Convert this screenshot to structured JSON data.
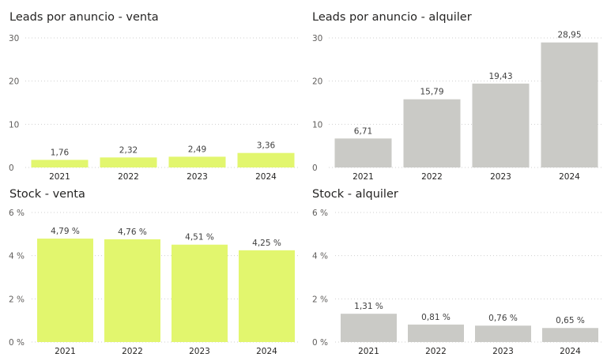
{
  "colors": {
    "venta": "#e2f66e",
    "alquiler": "#cacac6",
    "grid": "#cfcfcf",
    "axis_text": "#605e5c",
    "label_text": "#404040"
  },
  "chart_data": [
    {
      "id": "leads-venta",
      "type": "bar",
      "title": "Leads por anuncio - venta",
      "categories": [
        "2021",
        "2022",
        "2023",
        "2024"
      ],
      "values": [
        1.76,
        2.32,
        2.49,
        3.36
      ],
      "labels": [
        "1,76",
        "2,32",
        "2,49",
        "3,36"
      ],
      "yticks": [
        "0",
        "10",
        "20",
        "30"
      ],
      "ylim": [
        0,
        30
      ],
      "color": "#e2f66e",
      "grid": true
    },
    {
      "id": "leads-alquiler",
      "type": "bar",
      "title": "Leads por anuncio - alquiler",
      "categories": [
        "2021",
        "2022",
        "2023",
        "2024"
      ],
      "values": [
        6.71,
        15.79,
        19.43,
        28.95
      ],
      "labels": [
        "6,71",
        "15,79",
        "19,43",
        "28,95"
      ],
      "yticks": [
        "0",
        "10",
        "20",
        "30"
      ],
      "ylim": [
        0,
        30
      ],
      "color": "#cacac6",
      "grid": true
    },
    {
      "id": "stock-venta",
      "type": "bar",
      "title": "Stock - venta",
      "categories": [
        "2021",
        "2022",
        "2023",
        "2024"
      ],
      "values": [
        4.79,
        4.76,
        4.51,
        4.25
      ],
      "labels": [
        "4,79 %",
        "4,76 %",
        "4,51 %",
        "4,25 %"
      ],
      "yticks": [
        "0 %",
        "2 %",
        "4 %",
        "6 %"
      ],
      "ylim": [
        0,
        6
      ],
      "color": "#e2f66e",
      "grid": true
    },
    {
      "id": "stock-alquiler",
      "type": "bar",
      "title": "Stock - alquiler",
      "categories": [
        "2021",
        "2022",
        "2023",
        "2024"
      ],
      "values": [
        1.31,
        0.81,
        0.76,
        0.65
      ],
      "labels": [
        "1,31 %",
        "0,81 %",
        "0,76 %",
        "0,65 %"
      ],
      "yticks": [
        "0 %",
        "2 %",
        "4 %",
        "6 %"
      ],
      "ylim": [
        0,
        6
      ],
      "color": "#cacac6",
      "grid": true
    }
  ]
}
